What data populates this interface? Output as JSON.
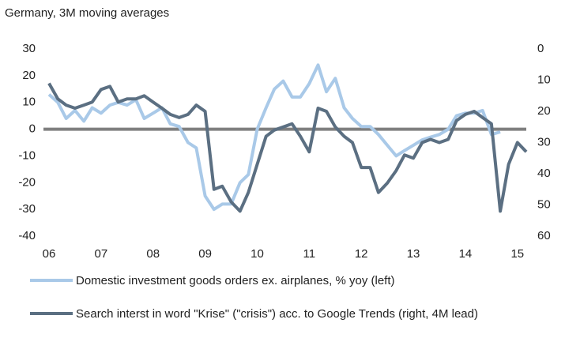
{
  "chart_data": {
    "type": "line",
    "title": "Germany, 3M moving averages",
    "x": [
      2006,
      2006.17,
      2006.33,
      2006.5,
      2006.67,
      2006.83,
      2007,
      2007.17,
      2007.33,
      2007.5,
      2007.67,
      2007.83,
      2008,
      2008.17,
      2008.33,
      2008.5,
      2008.67,
      2008.83,
      2009,
      2009.17,
      2009.33,
      2009.5,
      2009.67,
      2009.83,
      2010,
      2010.17,
      2010.33,
      2010.5,
      2010.67,
      2010.83,
      2011,
      2011.17,
      2011.33,
      2011.5,
      2011.67,
      2011.83,
      2012,
      2012.17,
      2012.33,
      2012.5,
      2012.67,
      2012.83,
      2013,
      2013.17,
      2013.33,
      2013.5,
      2013.67,
      2013.83,
      2014,
      2014.17,
      2014.33,
      2014.5,
      2014.67,
      2014.83,
      2015,
      2015.17
    ],
    "series": [
      {
        "name": "Domestic investment goods orders ex. airplanes, % yoy (left)",
        "color": "#a9c9e8",
        "axis": "y",
        "values": [
          13,
          10,
          4,
          7,
          3,
          8,
          6,
          9,
          10,
          9,
          11,
          4,
          6,
          8,
          2,
          1,
          -5,
          -7,
          -25,
          -30,
          -28,
          -28,
          -20,
          -17,
          0,
          8,
          15,
          18,
          12,
          12,
          17,
          24,
          14,
          19,
          8,
          4,
          1,
          1,
          -2,
          -6,
          -10,
          -8,
          -6,
          -4,
          -3,
          -2,
          0,
          5,
          6,
          6,
          7,
          -2,
          -1,
          null,
          null,
          null
        ]
      },
      {
        "name": "Search interst in word \"Krise\" (\"crisis\") acc. to Google Trends (right, 4M lead)",
        "color": "#5b6f82",
        "axis": "y2",
        "values": [
          11,
          16,
          18,
          19,
          18,
          17,
          13,
          12,
          17,
          16,
          16,
          15,
          17,
          19,
          21,
          22,
          21,
          18,
          20,
          45,
          44,
          49,
          52,
          46,
          37,
          28,
          26,
          25,
          24,
          28,
          33,
          19,
          20,
          25,
          28,
          30,
          38,
          38,
          46,
          43,
          39,
          34,
          35,
          30,
          29,
          30,
          29,
          23,
          21,
          20,
          22,
          24,
          52,
          37,
          30,
          33
        ]
      }
    ],
    "xlim": [
      2006,
      2015.17
    ],
    "xticks": [
      {
        "value": 2006,
        "label": "06"
      },
      {
        "value": 2007,
        "label": "07"
      },
      {
        "value": 2008,
        "label": "08"
      },
      {
        "value": 2009,
        "label": "09"
      },
      {
        "value": 2010,
        "label": "10"
      },
      {
        "value": 2011,
        "label": "11"
      },
      {
        "value": 2012,
        "label": "12"
      },
      {
        "value": 2013,
        "label": "13"
      },
      {
        "value": 2014,
        "label": "14"
      },
      {
        "value": 2015,
        "label": "15"
      }
    ],
    "ylim": [
      -40,
      30
    ],
    "yticks": [
      -40,
      -30,
      -20,
      -10,
      0,
      10,
      20,
      30
    ],
    "y2lim": [
      60,
      0
    ],
    "y2ticks": [
      0,
      10,
      20,
      30,
      40,
      50,
      60
    ],
    "grid": false
  }
}
